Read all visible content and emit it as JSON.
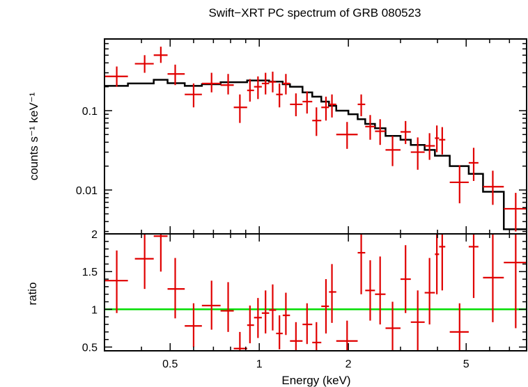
{
  "chart_data": {
    "type": "scatter",
    "title": "Swift−XRT PC spectrum of GRB 080523",
    "xlabel": "Energy (keV)",
    "x_scale": "log",
    "xlim": [
      0.3,
      8.0
    ],
    "x_ticks": [
      0.5,
      1,
      2,
      5
    ],
    "x_tick_labels": [
      "0.5",
      "1",
      "2",
      "5"
    ],
    "colors": {
      "data": "#e00000",
      "model": "#000000",
      "unity": "#00dd00",
      "frame": "#000000"
    },
    "panels": [
      {
        "name": "spectrum",
        "ylabel": "counts s⁻¹ keV⁻¹",
        "y_scale": "log",
        "ylim": [
          0.0028,
          0.8
        ],
        "y_ticks": [
          0.01,
          0.1
        ],
        "y_tick_labels": [
          "0.01",
          "0.1"
        ],
        "data": [
          {
            "x": 0.33,
            "xlo": 0.3,
            "xhi": 0.36,
            "y": 0.27,
            "ylo": 0.2,
            "yhi": 0.36
          },
          {
            "x": 0.41,
            "xlo": 0.38,
            "xhi": 0.44,
            "y": 0.39,
            "ylo": 0.3,
            "yhi": 0.5
          },
          {
            "x": 0.465,
            "xlo": 0.44,
            "xhi": 0.49,
            "y": 0.5,
            "ylo": 0.4,
            "yhi": 0.64
          },
          {
            "x": 0.52,
            "xlo": 0.49,
            "xhi": 0.56,
            "y": 0.29,
            "ylo": 0.21,
            "yhi": 0.38
          },
          {
            "x": 0.6,
            "xlo": 0.56,
            "xhi": 0.64,
            "y": 0.16,
            "ylo": 0.11,
            "yhi": 0.22
          },
          {
            "x": 0.69,
            "xlo": 0.64,
            "xhi": 0.74,
            "y": 0.22,
            "ylo": 0.17,
            "yhi": 0.3
          },
          {
            "x": 0.785,
            "xlo": 0.74,
            "xhi": 0.82,
            "y": 0.21,
            "ylo": 0.16,
            "yhi": 0.29
          },
          {
            "x": 0.86,
            "xlo": 0.82,
            "xhi": 0.91,
            "y": 0.11,
            "ylo": 0.07,
            "yhi": 0.16
          },
          {
            "x": 0.93,
            "xlo": 0.91,
            "xhi": 0.96,
            "y": 0.18,
            "ylo": 0.13,
            "yhi": 0.25
          },
          {
            "x": 0.99,
            "xlo": 0.96,
            "xhi": 1.02,
            "y": 0.2,
            "ylo": 0.14,
            "yhi": 0.27
          },
          {
            "x": 1.05,
            "xlo": 1.02,
            "xhi": 1.08,
            "y": 0.22,
            "ylo": 0.16,
            "yhi": 0.3
          },
          {
            "x": 1.11,
            "xlo": 1.08,
            "xhi": 1.14,
            "y": 0.23,
            "ylo": 0.17,
            "yhi": 0.31
          },
          {
            "x": 1.17,
            "xlo": 1.14,
            "xhi": 1.2,
            "y": 0.16,
            "ylo": 0.11,
            "yhi": 0.22
          },
          {
            "x": 1.23,
            "xlo": 1.2,
            "xhi": 1.27,
            "y": 0.22,
            "ylo": 0.16,
            "yhi": 0.29
          },
          {
            "x": 1.33,
            "xlo": 1.27,
            "xhi": 1.4,
            "y": 0.12,
            "ylo": 0.085,
            "yhi": 0.165
          },
          {
            "x": 1.45,
            "xlo": 1.4,
            "xhi": 1.51,
            "y": 0.13,
            "ylo": 0.092,
            "yhi": 0.175
          },
          {
            "x": 1.56,
            "xlo": 1.51,
            "xhi": 1.62,
            "y": 0.075,
            "ylo": 0.048,
            "yhi": 0.11
          },
          {
            "x": 1.68,
            "xlo": 1.62,
            "xhi": 1.72,
            "y": 0.11,
            "ylo": 0.075,
            "yhi": 0.15
          },
          {
            "x": 1.76,
            "xlo": 1.72,
            "xhi": 1.82,
            "y": 0.12,
            "ylo": 0.082,
            "yhi": 0.16
          },
          {
            "x": 1.98,
            "xlo": 1.82,
            "xhi": 2.15,
            "y": 0.05,
            "ylo": 0.033,
            "yhi": 0.072
          },
          {
            "x": 2.21,
            "xlo": 2.15,
            "xhi": 2.28,
            "y": 0.12,
            "ylo": 0.085,
            "yhi": 0.16
          },
          {
            "x": 2.37,
            "xlo": 2.28,
            "xhi": 2.46,
            "y": 0.063,
            "ylo": 0.043,
            "yhi": 0.088
          },
          {
            "x": 2.56,
            "xlo": 2.46,
            "xhi": 2.67,
            "y": 0.055,
            "ylo": 0.037,
            "yhi": 0.078
          },
          {
            "x": 2.82,
            "xlo": 2.67,
            "xhi": 3.0,
            "y": 0.032,
            "ylo": 0.02,
            "yhi": 0.048
          },
          {
            "x": 3.12,
            "xlo": 3.0,
            "xhi": 3.25,
            "y": 0.054,
            "ylo": 0.038,
            "yhi": 0.074
          },
          {
            "x": 3.43,
            "xlo": 3.25,
            "xhi": 3.62,
            "y": 0.03,
            "ylo": 0.018,
            "yhi": 0.046
          },
          {
            "x": 3.76,
            "xlo": 3.62,
            "xhi": 3.92,
            "y": 0.036,
            "ylo": 0.024,
            "yhi": 0.052
          },
          {
            "x": 3.98,
            "xlo": 3.92,
            "xhi": 4.05,
            "y": 0.045,
            "ylo": 0.03,
            "yhi": 0.065
          },
          {
            "x": 4.15,
            "xlo": 4.05,
            "xhi": 4.25,
            "y": 0.043,
            "ylo": 0.028,
            "yhi": 0.062
          },
          {
            "x": 4.75,
            "xlo": 4.4,
            "xhi": 5.1,
            "y": 0.0125,
            "ylo": 0.0068,
            "yhi": 0.0205
          },
          {
            "x": 5.3,
            "xlo": 5.1,
            "xhi": 5.5,
            "y": 0.022,
            "ylo": 0.013,
            "yhi": 0.034
          },
          {
            "x": 6.15,
            "xlo": 5.7,
            "xhi": 6.7,
            "y": 0.011,
            "ylo": 0.0065,
            "yhi": 0.0175
          },
          {
            "x": 7.35,
            "xlo": 6.7,
            "xhi": 8.0,
            "y": 0.0058,
            "ylo": 0.003,
            "yhi": 0.0092
          }
        ],
        "model_steps": [
          {
            "x0": 0.3,
            "x1": 0.36,
            "y": 0.205
          },
          {
            "x0": 0.36,
            "x1": 0.44,
            "y": 0.22
          },
          {
            "x0": 0.44,
            "x1": 0.49,
            "y": 0.245
          },
          {
            "x0": 0.49,
            "x1": 0.56,
            "y": 0.222
          },
          {
            "x0": 0.56,
            "x1": 0.64,
            "y": 0.205
          },
          {
            "x0": 0.64,
            "x1": 0.74,
            "y": 0.215
          },
          {
            "x0": 0.74,
            "x1": 0.91,
            "y": 0.228
          },
          {
            "x0": 0.91,
            "x1": 1.08,
            "y": 0.24
          },
          {
            "x0": 1.08,
            "x1": 1.2,
            "y": 0.232
          },
          {
            "x0": 1.2,
            "x1": 1.27,
            "y": 0.215
          },
          {
            "x0": 1.27,
            "x1": 1.4,
            "y": 0.2
          },
          {
            "x0": 1.4,
            "x1": 1.51,
            "y": 0.17
          },
          {
            "x0": 1.51,
            "x1": 1.62,
            "y": 0.15
          },
          {
            "x0": 1.62,
            "x1": 1.72,
            "y": 0.13
          },
          {
            "x0": 1.72,
            "x1": 1.82,
            "y": 0.115
          },
          {
            "x0": 1.82,
            "x1": 2.0,
            "y": 0.1
          },
          {
            "x0": 2.0,
            "x1": 2.15,
            "y": 0.09
          },
          {
            "x0": 2.15,
            "x1": 2.28,
            "y": 0.078
          },
          {
            "x0": 2.28,
            "x1": 2.46,
            "y": 0.068
          },
          {
            "x0": 2.46,
            "x1": 2.67,
            "y": 0.06
          },
          {
            "x0": 2.67,
            "x1": 3.0,
            "y": 0.048
          },
          {
            "x0": 3.0,
            "x1": 3.25,
            "y": 0.043
          },
          {
            "x0": 3.25,
            "x1": 3.62,
            "y": 0.037
          },
          {
            "x0": 3.62,
            "x1": 3.92,
            "y": 0.032
          },
          {
            "x0": 3.92,
            "x1": 4.4,
            "y": 0.027
          },
          {
            "x0": 4.4,
            "x1": 5.1,
            "y": 0.02
          },
          {
            "x0": 5.1,
            "x1": 5.7,
            "y": 0.016
          },
          {
            "x0": 5.7,
            "x1": 6.7,
            "y": 0.0095
          },
          {
            "x0": 6.7,
            "x1": 8.0,
            "y": 0.0032
          }
        ]
      },
      {
        "name": "ratio",
        "ylabel": "ratio",
        "y_scale": "linear",
        "ylim": [
          0.45,
          2.0
        ],
        "y_ticks": [
          0.5,
          1,
          1.5,
          2
        ],
        "y_tick_labels": [
          "0.5",
          "1",
          "1.5",
          "2"
        ],
        "unity_line": 1.0,
        "data": [
          {
            "x": 0.33,
            "xlo": 0.3,
            "xhi": 0.36,
            "y": 1.38,
            "ylo": 0.95,
            "yhi": 1.78
          },
          {
            "x": 0.41,
            "xlo": 0.38,
            "xhi": 0.44,
            "y": 1.67,
            "ylo": 1.27,
            "yhi": 2.05
          },
          {
            "x": 0.465,
            "xlo": 0.44,
            "xhi": 0.49,
            "y": 1.97,
            "ylo": 1.5,
            "yhi": 2.05
          },
          {
            "x": 0.52,
            "xlo": 0.49,
            "xhi": 0.56,
            "y": 1.27,
            "ylo": 0.88,
            "yhi": 1.68
          },
          {
            "x": 0.6,
            "xlo": 0.56,
            "xhi": 0.64,
            "y": 0.78,
            "ylo": 0.5,
            "yhi": 1.08
          },
          {
            "x": 0.69,
            "xlo": 0.64,
            "xhi": 0.74,
            "y": 1.05,
            "ylo": 0.73,
            "yhi": 1.38
          },
          {
            "x": 0.785,
            "xlo": 0.74,
            "xhi": 0.82,
            "y": 0.98,
            "ylo": 0.7,
            "yhi": 1.36
          },
          {
            "x": 0.86,
            "xlo": 0.82,
            "xhi": 0.91,
            "y": 0.48,
            "ylo": 0.45,
            "yhi": 0.7
          },
          {
            "x": 0.93,
            "xlo": 0.91,
            "xhi": 0.96,
            "y": 0.79,
            "ylo": 0.55,
            "yhi": 1.05
          },
          {
            "x": 0.99,
            "xlo": 0.96,
            "xhi": 1.02,
            "y": 0.89,
            "ylo": 0.62,
            "yhi": 1.15
          },
          {
            "x": 1.05,
            "xlo": 1.02,
            "xhi": 1.08,
            "y": 0.95,
            "ylo": 0.68,
            "yhi": 1.25
          },
          {
            "x": 1.11,
            "xlo": 1.08,
            "xhi": 1.14,
            "y": 0.99,
            "ylo": 0.72,
            "yhi": 1.33
          },
          {
            "x": 1.17,
            "xlo": 1.14,
            "xhi": 1.2,
            "y": 0.68,
            "ylo": 0.47,
            "yhi": 0.92
          },
          {
            "x": 1.23,
            "xlo": 1.2,
            "xhi": 1.27,
            "y": 0.92,
            "ylo": 0.66,
            "yhi": 1.22
          },
          {
            "x": 1.33,
            "xlo": 1.27,
            "xhi": 1.4,
            "y": 0.58,
            "ylo": 0.45,
            "yhi": 0.83
          },
          {
            "x": 1.45,
            "xlo": 1.4,
            "xhi": 1.51,
            "y": 0.8,
            "ylo": 0.54,
            "yhi": 1.08
          },
          {
            "x": 1.56,
            "xlo": 1.51,
            "xhi": 1.62,
            "y": 0.56,
            "ylo": 0.45,
            "yhi": 0.83
          },
          {
            "x": 1.68,
            "xlo": 1.62,
            "xhi": 1.72,
            "y": 1.04,
            "ylo": 0.68,
            "yhi": 1.4
          },
          {
            "x": 1.76,
            "xlo": 1.72,
            "xhi": 1.82,
            "y": 1.23,
            "ylo": 0.82,
            "yhi": 1.6
          },
          {
            "x": 1.98,
            "xlo": 1.82,
            "xhi": 2.15,
            "y": 0.58,
            "ylo": 0.45,
            "yhi": 0.85
          },
          {
            "x": 2.21,
            "xlo": 2.15,
            "xhi": 2.28,
            "y": 1.75,
            "ylo": 1.2,
            "yhi": 2.05
          },
          {
            "x": 2.37,
            "xlo": 2.28,
            "xhi": 2.46,
            "y": 1.25,
            "ylo": 0.85,
            "yhi": 1.65
          },
          {
            "x": 2.56,
            "xlo": 2.46,
            "xhi": 2.67,
            "y": 1.2,
            "ylo": 0.8,
            "yhi": 1.7
          },
          {
            "x": 2.82,
            "xlo": 2.67,
            "xhi": 3.0,
            "y": 0.75,
            "ylo": 0.45,
            "yhi": 1.1
          },
          {
            "x": 3.12,
            "xlo": 3.0,
            "xhi": 3.25,
            "y": 1.4,
            "ylo": 0.95,
            "yhi": 1.85
          },
          {
            "x": 3.43,
            "xlo": 3.25,
            "xhi": 3.62,
            "y": 0.83,
            "ylo": 0.45,
            "yhi": 1.25
          },
          {
            "x": 3.76,
            "xlo": 3.62,
            "xhi": 3.92,
            "y": 1.22,
            "ylo": 0.8,
            "yhi": 1.68
          },
          {
            "x": 3.98,
            "xlo": 3.92,
            "xhi": 4.05,
            "y": 1.73,
            "ylo": 1.2,
            "yhi": 2.05
          },
          {
            "x": 4.15,
            "xlo": 4.05,
            "xhi": 4.25,
            "y": 1.83,
            "ylo": 1.25,
            "yhi": 2.05
          },
          {
            "x": 4.75,
            "xlo": 4.4,
            "xhi": 5.1,
            "y": 0.7,
            "ylo": 0.45,
            "yhi": 1.08
          },
          {
            "x": 5.3,
            "xlo": 5.1,
            "xhi": 5.5,
            "y": 1.83,
            "ylo": 1.15,
            "yhi": 2.05
          },
          {
            "x": 6.15,
            "xlo": 5.7,
            "xhi": 6.7,
            "y": 1.42,
            "ylo": 0.83,
            "yhi": 2.05
          },
          {
            "x": 7.35,
            "xlo": 6.7,
            "xhi": 8.0,
            "y": 1.62,
            "ylo": 0.75,
            "yhi": 2.05
          }
        ]
      }
    ]
  }
}
